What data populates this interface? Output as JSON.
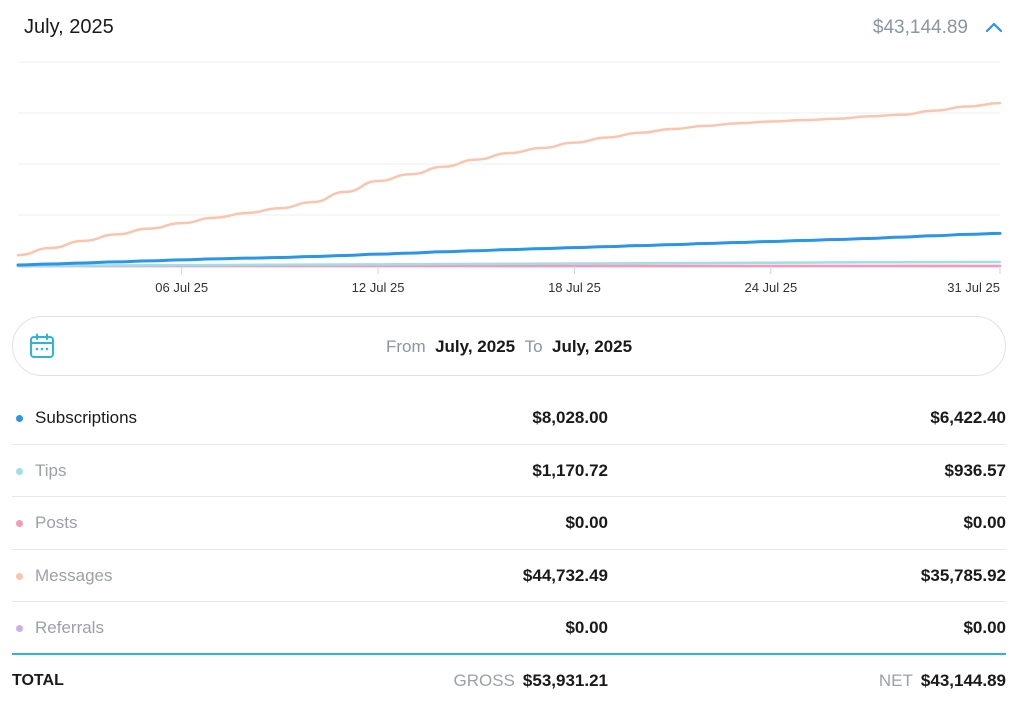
{
  "header": {
    "title": "July, 2025",
    "total": "$43,144.89",
    "toggle_icon": "chevron-up-icon"
  },
  "colors": {
    "subscriptions": "#2b95e6",
    "tips": "#9fdfe8",
    "posts": "#f29bb6",
    "messages": "#fbc5ad",
    "referrals": "#c9b0e6",
    "accent": "#2bb5d8"
  },
  "chart_data": {
    "type": "line",
    "x": [
      "01 Jul 25",
      "02 Jul 25",
      "03 Jul 25",
      "04 Jul 25",
      "05 Jul 25",
      "06 Jul 25",
      "07 Jul 25",
      "08 Jul 25",
      "09 Jul 25",
      "10 Jul 25",
      "11 Jul 25",
      "12 Jul 25",
      "13 Jul 25",
      "14 Jul 25",
      "15 Jul 25",
      "16 Jul 25",
      "17 Jul 25",
      "18 Jul 25",
      "19 Jul 25",
      "20 Jul 25",
      "21 Jul 25",
      "22 Jul 25",
      "23 Jul 25",
      "24 Jul 25",
      "25 Jul 25",
      "26 Jul 25",
      "27 Jul 25",
      "28 Jul 25",
      "29 Jul 25",
      "30 Jul 25",
      "31 Jul 25"
    ],
    "tick_labels": [
      "06 Jul 25",
      "12 Jul 25",
      "18 Jul 25",
      "24 Jul 25",
      "31 Jul 25"
    ],
    "ylim": [
      0,
      60000
    ],
    "grid": true,
    "series": [
      {
        "key": "messages",
        "values": [
          3200,
          5300,
          7400,
          9300,
          11000,
          12600,
          14200,
          15600,
          17000,
          18800,
          21800,
          25000,
          27000,
          29200,
          31300,
          33200,
          34700,
          36300,
          37800,
          39200,
          40300,
          41200,
          42000,
          42500,
          42900,
          43300,
          44000,
          44500,
          45700,
          46900,
          47900
        ]
      },
      {
        "key": "subscriptions",
        "values": [
          300,
          600,
          900,
          1200,
          1500,
          1800,
          2100,
          2300,
          2500,
          2800,
          3100,
          3500,
          3800,
          4200,
          4500,
          4800,
          5100,
          5400,
          5700,
          6000,
          6300,
          6600,
          6900,
          7200,
          7500,
          7800,
          8100,
          8500,
          8900,
          9300,
          9600
        ]
      },
      {
        "key": "tips",
        "values": [
          50,
          90,
          130,
          170,
          210,
          250,
          290,
          330,
          370,
          410,
          450,
          490,
          530,
          570,
          610,
          650,
          690,
          730,
          770,
          810,
          850,
          890,
          930,
          970,
          1010,
          1050,
          1090,
          1120,
          1140,
          1160,
          1170
        ]
      },
      {
        "key": "posts",
        "values": [
          0,
          0,
          0,
          0,
          0,
          0,
          0,
          0,
          0,
          0,
          0,
          0,
          0,
          0,
          0,
          0,
          0,
          0,
          0,
          0,
          0,
          0,
          0,
          0,
          0,
          0,
          0,
          0,
          0,
          0,
          0
        ]
      },
      {
        "key": "referrals",
        "values": [
          0,
          0,
          0,
          0,
          0,
          0,
          0,
          0,
          0,
          0,
          0,
          0,
          0,
          0,
          0,
          0,
          0,
          0,
          0,
          0,
          0,
          0,
          0,
          0,
          0,
          0,
          0,
          0,
          0,
          0,
          0
        ]
      }
    ]
  },
  "range": {
    "icon": "calendar-icon",
    "from_label": "From",
    "from_value": "July, 2025",
    "to_label": "To",
    "to_value": "July, 2025"
  },
  "rows": [
    {
      "name": "Subscriptions",
      "gross": "$8,028.00",
      "net": "$6,422.40"
    },
    {
      "name": "Tips",
      "gross": "$1,170.72",
      "net": "$936.57"
    },
    {
      "name": "Posts",
      "gross": "$0.00",
      "net": "$0.00"
    },
    {
      "name": "Messages",
      "gross": "$44,732.49",
      "net": "$35,785.92"
    },
    {
      "name": "Referrals",
      "gross": "$0.00",
      "net": "$0.00"
    }
  ],
  "totals": {
    "label": "TOTAL",
    "gross_caption": "GROSS",
    "gross_value": "$53,931.21",
    "net_caption": "NET",
    "net_value": "$43,144.89"
  }
}
